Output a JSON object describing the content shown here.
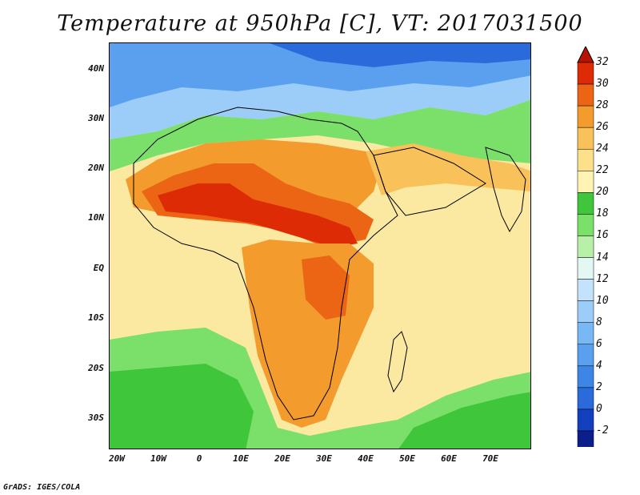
{
  "title": "Temperature at 950hPa [C], VT: 2017031500",
  "credit": "GrADS: IGES/COLA",
  "lat_labels": [
    "40N",
    "30N",
    "20N",
    "10N",
    "EQ",
    "10S",
    "20S",
    "30S"
  ],
  "lon_labels": [
    "20W",
    "10W",
    "0",
    "10E",
    "20E",
    "30E",
    "40E",
    "50E",
    "60E",
    "70E"
  ],
  "colorbar": {
    "labels": [
      "-2",
      "0",
      "2",
      "4",
      "6",
      "8",
      "10",
      "12",
      "14",
      "16",
      "18",
      "20",
      "22",
      "24",
      "26",
      "28",
      "30",
      "32"
    ],
    "colors": [
      "#0a1f8a",
      "#1440c0",
      "#2a6adb",
      "#3d86e6",
      "#5aa0ef",
      "#78b9f5",
      "#9ccdf8",
      "#c2e3fb",
      "#e3f7f3",
      "#b7f0a6",
      "#7be06a",
      "#3fc63a",
      "#fff4b3",
      "#fde08a",
      "#f9c15a",
      "#f39b2d",
      "#ec6514",
      "#dc2b05",
      "#b81200"
    ]
  },
  "regions": {
    "ocean_warm": "#fbe9a2",
    "ocean_cool": "#3fc63a",
    "sahara_hot": "#e0440a",
    "north_cool": "#5aa0ef",
    "med_blue": "#3d86e6",
    "land_mid": "#f39b2d"
  }
}
